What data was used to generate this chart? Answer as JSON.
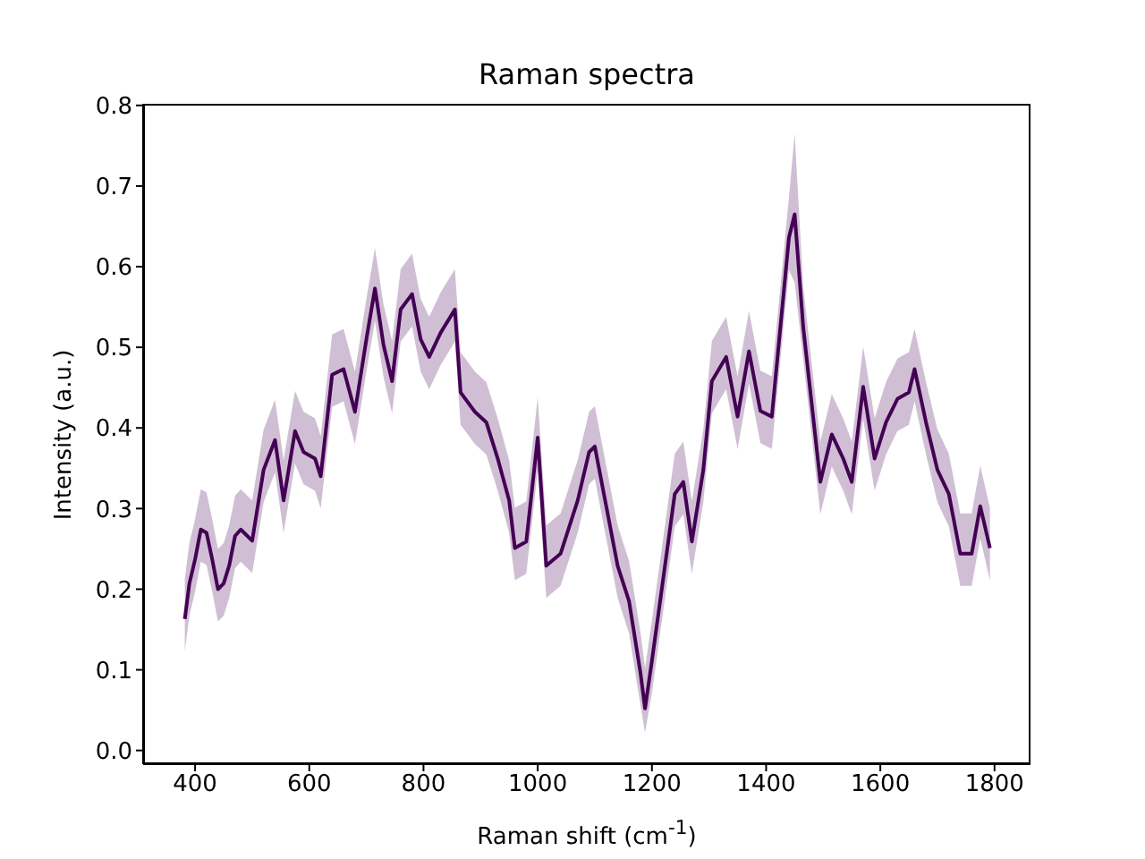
{
  "chart_data": {
    "type": "line",
    "title": "Raman spectra",
    "xlabel": "Raman shift (cm$^{-1}$)",
    "ylabel": "Intensity (a.u.)",
    "xlim": [
      309,
      1863
    ],
    "xticks": [
      400,
      600,
      800,
      1000,
      1200,
      1400,
      1600,
      1800
    ],
    "ylim": [
      -0.017,
      0.802
    ],
    "yticks": [
      {
        "value": 0,
        "label": "0.0"
      },
      0.1,
      0.2,
      0.3,
      0.4,
      0.5,
      0.6,
      0.7,
      0.8
    ],
    "grid": false,
    "x": [
      382,
      390,
      400,
      410,
      420,
      430,
      440,
      450,
      460,
      470,
      480,
      500,
      520,
      540,
      555,
      575,
      590,
      610,
      620,
      640,
      660,
      680,
      700,
      715,
      730,
      745,
      760,
      780,
      795,
      810,
      830,
      855,
      865,
      890,
      910,
      930,
      950,
      960,
      980,
      1000,
      1015,
      1040,
      1070,
      1090,
      1100,
      1120,
      1140,
      1160,
      1180,
      1188,
      1200,
      1220,
      1240,
      1255,
      1270,
      1290,
      1305,
      1330,
      1350,
      1370,
      1390,
      1410,
      1425,
      1440,
      1450,
      1465,
      1480,
      1495,
      1515,
      1535,
      1550,
      1570,
      1590,
      1610,
      1630,
      1650,
      1660,
      1680,
      1700,
      1720,
      1740,
      1760,
      1775,
      1792
    ],
    "series": [
      {
        "color": "#440154",
        "values": [
          0.163,
          0.207,
          0.237,
          0.274,
          0.27,
          0.237,
          0.2,
          0.207,
          0.23,
          0.266,
          0.274,
          0.26,
          0.348,
          0.385,
          0.31,
          0.396,
          0.37,
          0.362,
          0.34,
          0.466,
          0.473,
          0.42,
          0.51,
          0.573,
          0.503,
          0.458,
          0.547,
          0.566,
          0.51,
          0.488,
          0.518,
          0.547,
          0.444,
          0.42,
          0.407,
          0.362,
          0.31,
          0.251,
          0.259,
          0.388,
          0.229,
          0.244,
          0.31,
          0.37,
          0.377,
          0.303,
          0.229,
          0.185,
          0.096,
          0.052,
          0.111,
          0.214,
          0.318,
          0.333,
          0.259,
          0.348,
          0.458,
          0.488,
          0.414,
          0.495,
          0.421,
          0.414,
          0.525,
          0.636,
          0.665,
          0.525,
          0.429,
          0.333,
          0.392,
          0.362,
          0.333,
          0.451,
          0.362,
          0.407,
          0.436,
          0.444,
          0.473,
          0.407,
          0.348,
          0.318,
          0.244,
          0.244,
          0.303,
          0.251
        ],
        "lower": [
          0.123,
          0.167,
          0.197,
          0.234,
          0.23,
          0.197,
          0.16,
          0.167,
          0.19,
          0.226,
          0.234,
          0.22,
          0.308,
          0.345,
          0.27,
          0.356,
          0.33,
          0.322,
          0.3,
          0.426,
          0.433,
          0.38,
          0.47,
          0.533,
          0.463,
          0.418,
          0.507,
          0.526,
          0.47,
          0.448,
          0.478,
          0.507,
          0.404,
          0.38,
          0.367,
          0.322,
          0.27,
          0.211,
          0.219,
          0.348,
          0.189,
          0.204,
          0.27,
          0.33,
          0.337,
          0.263,
          0.189,
          0.145,
          0.056,
          0.022,
          0.071,
          0.174,
          0.278,
          0.293,
          0.219,
          0.308,
          0.418,
          0.448,
          0.374,
          0.455,
          0.381,
          0.374,
          0.485,
          0.596,
          0.58,
          0.485,
          0.389,
          0.293,
          0.352,
          0.322,
          0.293,
          0.411,
          0.322,
          0.367,
          0.396,
          0.404,
          0.433,
          0.367,
          0.308,
          0.278,
          0.204,
          0.204,
          0.263,
          0.211
        ],
        "upper": [
          0.213,
          0.257,
          0.287,
          0.324,
          0.32,
          0.287,
          0.25,
          0.257,
          0.28,
          0.316,
          0.324,
          0.31,
          0.398,
          0.435,
          0.36,
          0.446,
          0.42,
          0.412,
          0.39,
          0.516,
          0.523,
          0.47,
          0.56,
          0.623,
          0.553,
          0.508,
          0.597,
          0.616,
          0.56,
          0.538,
          0.568,
          0.597,
          0.494,
          0.47,
          0.457,
          0.412,
          0.36,
          0.301,
          0.309,
          0.438,
          0.279,
          0.294,
          0.36,
          0.42,
          0.427,
          0.353,
          0.279,
          0.235,
          0.146,
          0.102,
          0.161,
          0.264,
          0.368,
          0.383,
          0.309,
          0.398,
          0.508,
          0.538,
          0.464,
          0.545,
          0.471,
          0.464,
          0.575,
          0.686,
          0.765,
          0.575,
          0.479,
          0.383,
          0.442,
          0.412,
          0.383,
          0.501,
          0.412,
          0.457,
          0.486,
          0.494,
          0.523,
          0.457,
          0.398,
          0.368,
          0.294,
          0.294,
          0.353,
          0.301
        ]
      }
    ]
  }
}
